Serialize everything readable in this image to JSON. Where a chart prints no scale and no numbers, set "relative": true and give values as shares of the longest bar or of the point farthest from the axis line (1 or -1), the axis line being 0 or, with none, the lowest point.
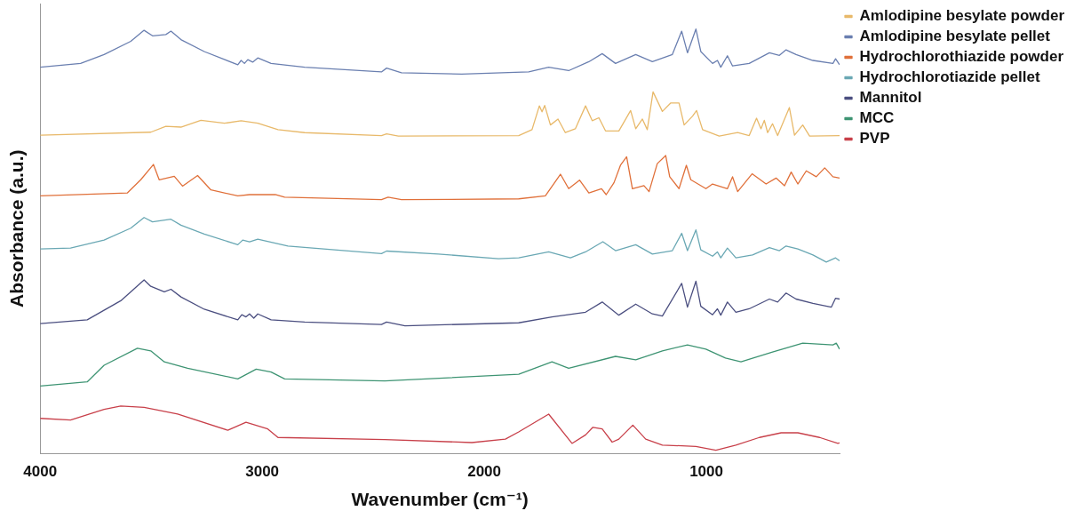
{
  "chart_data": {
    "type": "line",
    "xlabel": "Wavenumber (cm⁻¹)",
    "ylabel": "Absorbance (a.u.)",
    "relative": true,
    "xlim": [
      4000,
      400
    ],
    "xticks": [
      4000,
      3000,
      2000,
      1000
    ],
    "grid": false,
    "legend": "right",
    "marker": "none",
    "line_style": "solid",
    "series": [
      {
        "name": "Amlodipine besylate powder",
        "color": "#e8b96a",
        "x": [
          4000,
          3502,
          3434,
          3366,
          3276,
          3170,
          3095,
          3020,
          2929,
          2809,
          2463,
          2440,
          2387,
          1845,
          1785,
          1752,
          1740,
          1728,
          1702,
          1668,
          1635,
          1590,
          1544,
          1514,
          1484,
          1454,
          1394,
          1341,
          1318,
          1288,
          1266,
          1240,
          1198,
          1160,
          1123,
          1100,
          1062,
          1044,
          1017,
          942,
          859,
          807,
          774,
          754,
          739,
          724,
          702,
          679,
          626,
          603,
          566,
          535,
          400
        ],
        "values": [
          0.75,
          0.757,
          0.771,
          0.769,
          0.785,
          0.778,
          0.784,
          0.778,
          0.763,
          0.756,
          0.749,
          0.753,
          0.748,
          0.749,
          0.763,
          0.819,
          0.805,
          0.82,
          0.774,
          0.788,
          0.756,
          0.765,
          0.819,
          0.784,
          0.791,
          0.76,
          0.76,
          0.808,
          0.765,
          0.788,
          0.763,
          0.852,
          0.806,
          0.826,
          0.826,
          0.774,
          0.795,
          0.808,
          0.763,
          0.748,
          0.756,
          0.749,
          0.79,
          0.765,
          0.785,
          0.756,
          0.777,
          0.749,
          0.815,
          0.75,
          0.774,
          0.748,
          0.749
        ]
      },
      {
        "name": "Amlodipine besylate pellet",
        "color": "#6a7fb0",
        "x": [
          4000,
          3818,
          3712,
          3592,
          3532,
          3494,
          3434,
          3411,
          3366,
          3261,
          3110,
          3095,
          3080,
          3065,
          3043,
          3020,
          2960,
          2809,
          2463,
          2440,
          2373,
          2102,
          1800,
          1710,
          1620,
          1529,
          1469,
          1409,
          1318,
          1243,
          1153,
          1111,
          1085,
          1047,
          1025,
          972,
          950,
          935,
          905,
          882,
          807,
          716,
          671,
          641,
          596,
          520,
          430,
          418,
          400
        ],
        "values": [
          0.91,
          0.919,
          0.94,
          0.971,
          0.997,
          0.984,
          0.987,
          0.995,
          0.975,
          0.947,
          0.916,
          0.926,
          0.919,
          0.928,
          0.922,
          0.932,
          0.919,
          0.91,
          0.899,
          0.908,
          0.897,
          0.894,
          0.899,
          0.91,
          0.902,
          0.923,
          0.942,
          0.919,
          0.94,
          0.923,
          0.94,
          0.995,
          0.944,
          1,
          0.947,
          0.919,
          0.926,
          0.91,
          0.937,
          0.913,
          0.919,
          0.944,
          0.938,
          0.951,
          0.94,
          0.926,
          0.919,
          0.93,
          0.916
        ]
      },
      {
        "name": "Hydrochlorothiazide powder",
        "color": "#e0703a",
        "x": [
          4000,
          3607,
          3547,
          3490,
          3464,
          3396,
          3359,
          3291,
          3231,
          3110,
          3057,
          2941,
          2899,
          2463,
          2433,
          2373,
          1845,
          1725,
          1657,
          1620,
          1571,
          1529,
          1472,
          1451,
          1416,
          1386,
          1359,
          1333,
          1281,
          1258,
          1221,
          1183,
          1165,
          1123,
          1090,
          1070,
          1002,
          972,
          905,
          882,
          859,
          794,
          731,
          686,
          648,
          618,
          588,
          550,
          505,
          467,
          430,
          400
        ],
        "values": [
          0.607,
          0.614,
          0.645,
          0.681,
          0.645,
          0.653,
          0.63,
          0.655,
          0.621,
          0.607,
          0.61,
          0.61,
          0.604,
          0.598,
          0.604,
          0.598,
          0.6,
          0.607,
          0.658,
          0.624,
          0.644,
          0.614,
          0.624,
          0.61,
          0.638,
          0.68,
          0.699,
          0.624,
          0.631,
          0.617,
          0.683,
          0.702,
          0.652,
          0.624,
          0.679,
          0.645,
          0.624,
          0.635,
          0.624,
          0.652,
          0.617,
          0.659,
          0.635,
          0.649,
          0.631,
          0.663,
          0.635,
          0.666,
          0.652,
          0.673,
          0.652,
          0.649
        ]
      },
      {
        "name": "Hydrochlorotiazide pellet",
        "color": "#6aa8b4",
        "x": [
          4000,
          3863,
          3712,
          3592,
          3532,
          3494,
          3411,
          3366,
          3261,
          3110,
          3088,
          3057,
          3020,
          2884,
          2463,
          2440,
          2207,
          1936,
          1845,
          1710,
          1612,
          1544,
          1466,
          1409,
          1318,
          1243,
          1153,
          1111,
          1085,
          1047,
          1025,
          972,
          950,
          935,
          905,
          867,
          792,
          716,
          671,
          641,
          588,
          520,
          460,
          418,
          400
        ],
        "values": [
          0.482,
          0.484,
          0.503,
          0.531,
          0.556,
          0.546,
          0.552,
          0.538,
          0.517,
          0.492,
          0.503,
          0.499,
          0.505,
          0.489,
          0.471,
          0.477,
          0.47,
          0.459,
          0.461,
          0.475,
          0.461,
          0.475,
          0.499,
          0.478,
          0.492,
          0.47,
          0.478,
          0.519,
          0.478,
          0.527,
          0.48,
          0.465,
          0.475,
          0.461,
          0.484,
          0.461,
          0.468,
          0.485,
          0.478,
          0.489,
          0.482,
          0.468,
          0.451,
          0.461,
          0.454
        ]
      },
      {
        "name": "Mannitol",
        "color": "#4b4f80",
        "x": [
          4000,
          3788,
          3637,
          3532,
          3502,
          3441,
          3411,
          3366,
          3261,
          3110,
          3092,
          3073,
          3057,
          3038,
          3020,
          2960,
          2809,
          2463,
          2440,
          2357,
          1845,
          1695,
          1544,
          1469,
          1394,
          1318,
          1243,
          1198,
          1111,
          1085,
          1047,
          1025,
          972,
          950,
          935,
          905,
          867,
          807,
          716,
          679,
          641,
          596,
          520,
          437,
          418,
          400
        ],
        "values": [
          0.306,
          0.315,
          0.36,
          0.409,
          0.394,
          0.381,
          0.387,
          0.369,
          0.34,
          0.315,
          0.327,
          0.322,
          0.329,
          0.319,
          0.329,
          0.315,
          0.31,
          0.304,
          0.31,
          0.301,
          0.308,
          0.322,
          0.333,
          0.357,
          0.326,
          0.352,
          0.329,
          0.324,
          0.401,
          0.345,
          0.406,
          0.347,
          0.327,
          0.341,
          0.326,
          0.357,
          0.333,
          0.341,
          0.364,
          0.357,
          0.378,
          0.364,
          0.354,
          0.345,
          0.366,
          0.364
        ]
      },
      {
        "name": "MCC",
        "color": "#3e9473",
        "x": [
          4000,
          3788,
          3712,
          3562,
          3502,
          3441,
          3336,
          3110,
          3027,
          2960,
          2899,
          2448,
          1845,
          1695,
          1620,
          1409,
          1318,
          1198,
          1085,
          1002,
          914,
          844,
          702,
          566,
          430,
          415,
          400
        ],
        "values": [
          0.159,
          0.169,
          0.208,
          0.248,
          0.242,
          0.216,
          0.201,
          0.176,
          0.199,
          0.192,
          0.176,
          0.171,
          0.187,
          0.216,
          0.201,
          0.229,
          0.221,
          0.242,
          0.256,
          0.246,
          0.225,
          0.216,
          0.239,
          0.26,
          0.256,
          0.26,
          0.246
        ]
      },
      {
        "name": "PVP",
        "color": "#c8404a",
        "x": [
          4000,
          3863,
          3712,
          3637,
          3532,
          3381,
          3155,
          3073,
          2975,
          2929,
          2448,
          2056,
          1905,
          1845,
          1710,
          1605,
          1544,
          1511,
          1469,
          1424,
          1394,
          1331,
          1273,
          1198,
          1047,
          957,
          867,
          761,
          663,
          588,
          490,
          408,
          400
        ],
        "values": [
          0.083,
          0.079,
          0.104,
          0.112,
          0.109,
          0.093,
          0.055,
          0.074,
          0.058,
          0.038,
          0.033,
          0.026,
          0.034,
          0.051,
          0.093,
          0.024,
          0.044,
          0.062,
          0.058,
          0.027,
          0.034,
          0.067,
          0.034,
          0.02,
          0.017,
          0.008,
          0.02,
          0.038,
          0.049,
          0.049,
          0.038,
          0.024,
          0.025
        ]
      }
    ]
  }
}
